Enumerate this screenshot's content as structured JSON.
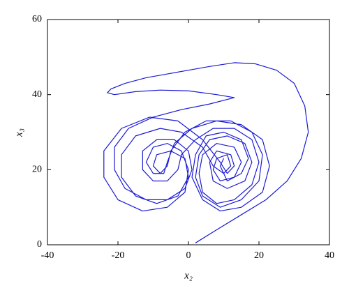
{
  "chart_data": {
    "type": "line",
    "xlabel": "x₂",
    "ylabel": "x₃",
    "color": "#1a1ad6",
    "xlim": [
      -40,
      40
    ],
    "ylim": [
      0,
      60
    ],
    "xticks": [
      -40,
      -20,
      0,
      20,
      40
    ],
    "yticks": [
      0,
      20,
      40,
      60
    ],
    "grid": false,
    "x": [
      2,
      8,
      15,
      22,
      28,
      32,
      34,
      33,
      30,
      25,
      19,
      13,
      6,
      0,
      -6,
      -12,
      -18,
      -22,
      -23,
      -21,
      -15,
      -8,
      0,
      8,
      13,
      6,
      -2,
      -10,
      -17,
      -21,
      -21,
      -18,
      -12,
      -6,
      -1,
      1,
      0,
      -4,
      -9,
      -13,
      -13,
      -10,
      -6,
      -3,
      -2,
      2,
      7,
      13,
      18,
      20,
      18,
      13,
      8,
      4,
      3,
      4,
      8,
      13,
      15,
      13,
      9,
      7,
      8,
      11,
      12,
      10,
      7,
      4,
      -2,
      -8,
      -15,
      -19,
      -19,
      -15,
      -9,
      -3,
      0,
      -1,
      -5,
      -9,
      -10,
      -8,
      -6,
      -5,
      -1,
      5,
      12,
      18,
      21,
      20,
      15,
      9,
      4,
      2,
      3,
      6,
      11,
      16,
      18,
      16,
      11,
      7,
      6,
      8,
      12,
      13,
      11,
      9,
      4,
      -3,
      -11,
      -19,
      -24,
      -24,
      -20,
      -13,
      -6,
      -1,
      0,
      -2,
      -6,
      -10,
      -12,
      -10,
      -7,
      -6,
      -4,
      1,
      8,
      15,
      21,
      23,
      21,
      15,
      9,
      4,
      1,
      2,
      5,
      10,
      15,
      17,
      15,
      11,
      9,
      10
    ],
    "values": [
      0.5,
      4,
      8,
      12,
      17,
      23,
      30,
      37,
      43,
      46.5,
      48.2,
      48.5,
      47.5,
      46.5,
      45.5,
      44.5,
      43,
      41.5,
      40.5,
      40,
      40.8,
      41.2,
      41,
      40,
      39.2,
      37.5,
      36,
      34,
      31,
      26,
      20,
      15,
      12,
      12,
      15,
      20,
      25,
      28,
      28,
      25,
      20,
      17,
      17,
      20,
      24,
      28,
      31,
      31,
      28,
      22,
      16,
      12,
      11,
      14,
      19,
      24,
      27,
      26,
      22,
      18,
      17,
      20,
      23,
      24,
      21,
      19,
      21,
      26,
      30,
      31,
      29,
      24,
      18,
      13,
      11,
      13,
      18,
      23,
      25,
      24,
      21,
      19,
      21,
      25,
      30,
      33,
      33,
      30,
      24,
      17,
      12,
      10,
      13,
      18,
      24,
      28,
      29,
      27,
      22,
      17,
      15,
      17,
      22,
      25,
      24,
      21,
      19,
      22,
      28,
      33,
      34,
      31,
      25,
      18,
      12,
      9,
      10,
      14,
      20,
      25,
      27,
      26,
      22,
      19,
      19,
      22,
      27,
      31,
      33,
      32,
      28,
      21,
      14,
      10,
      9,
      12,
      18,
      24,
      29,
      30,
      28,
      23,
      19,
      17,
      21,
      23
    ]
  }
}
